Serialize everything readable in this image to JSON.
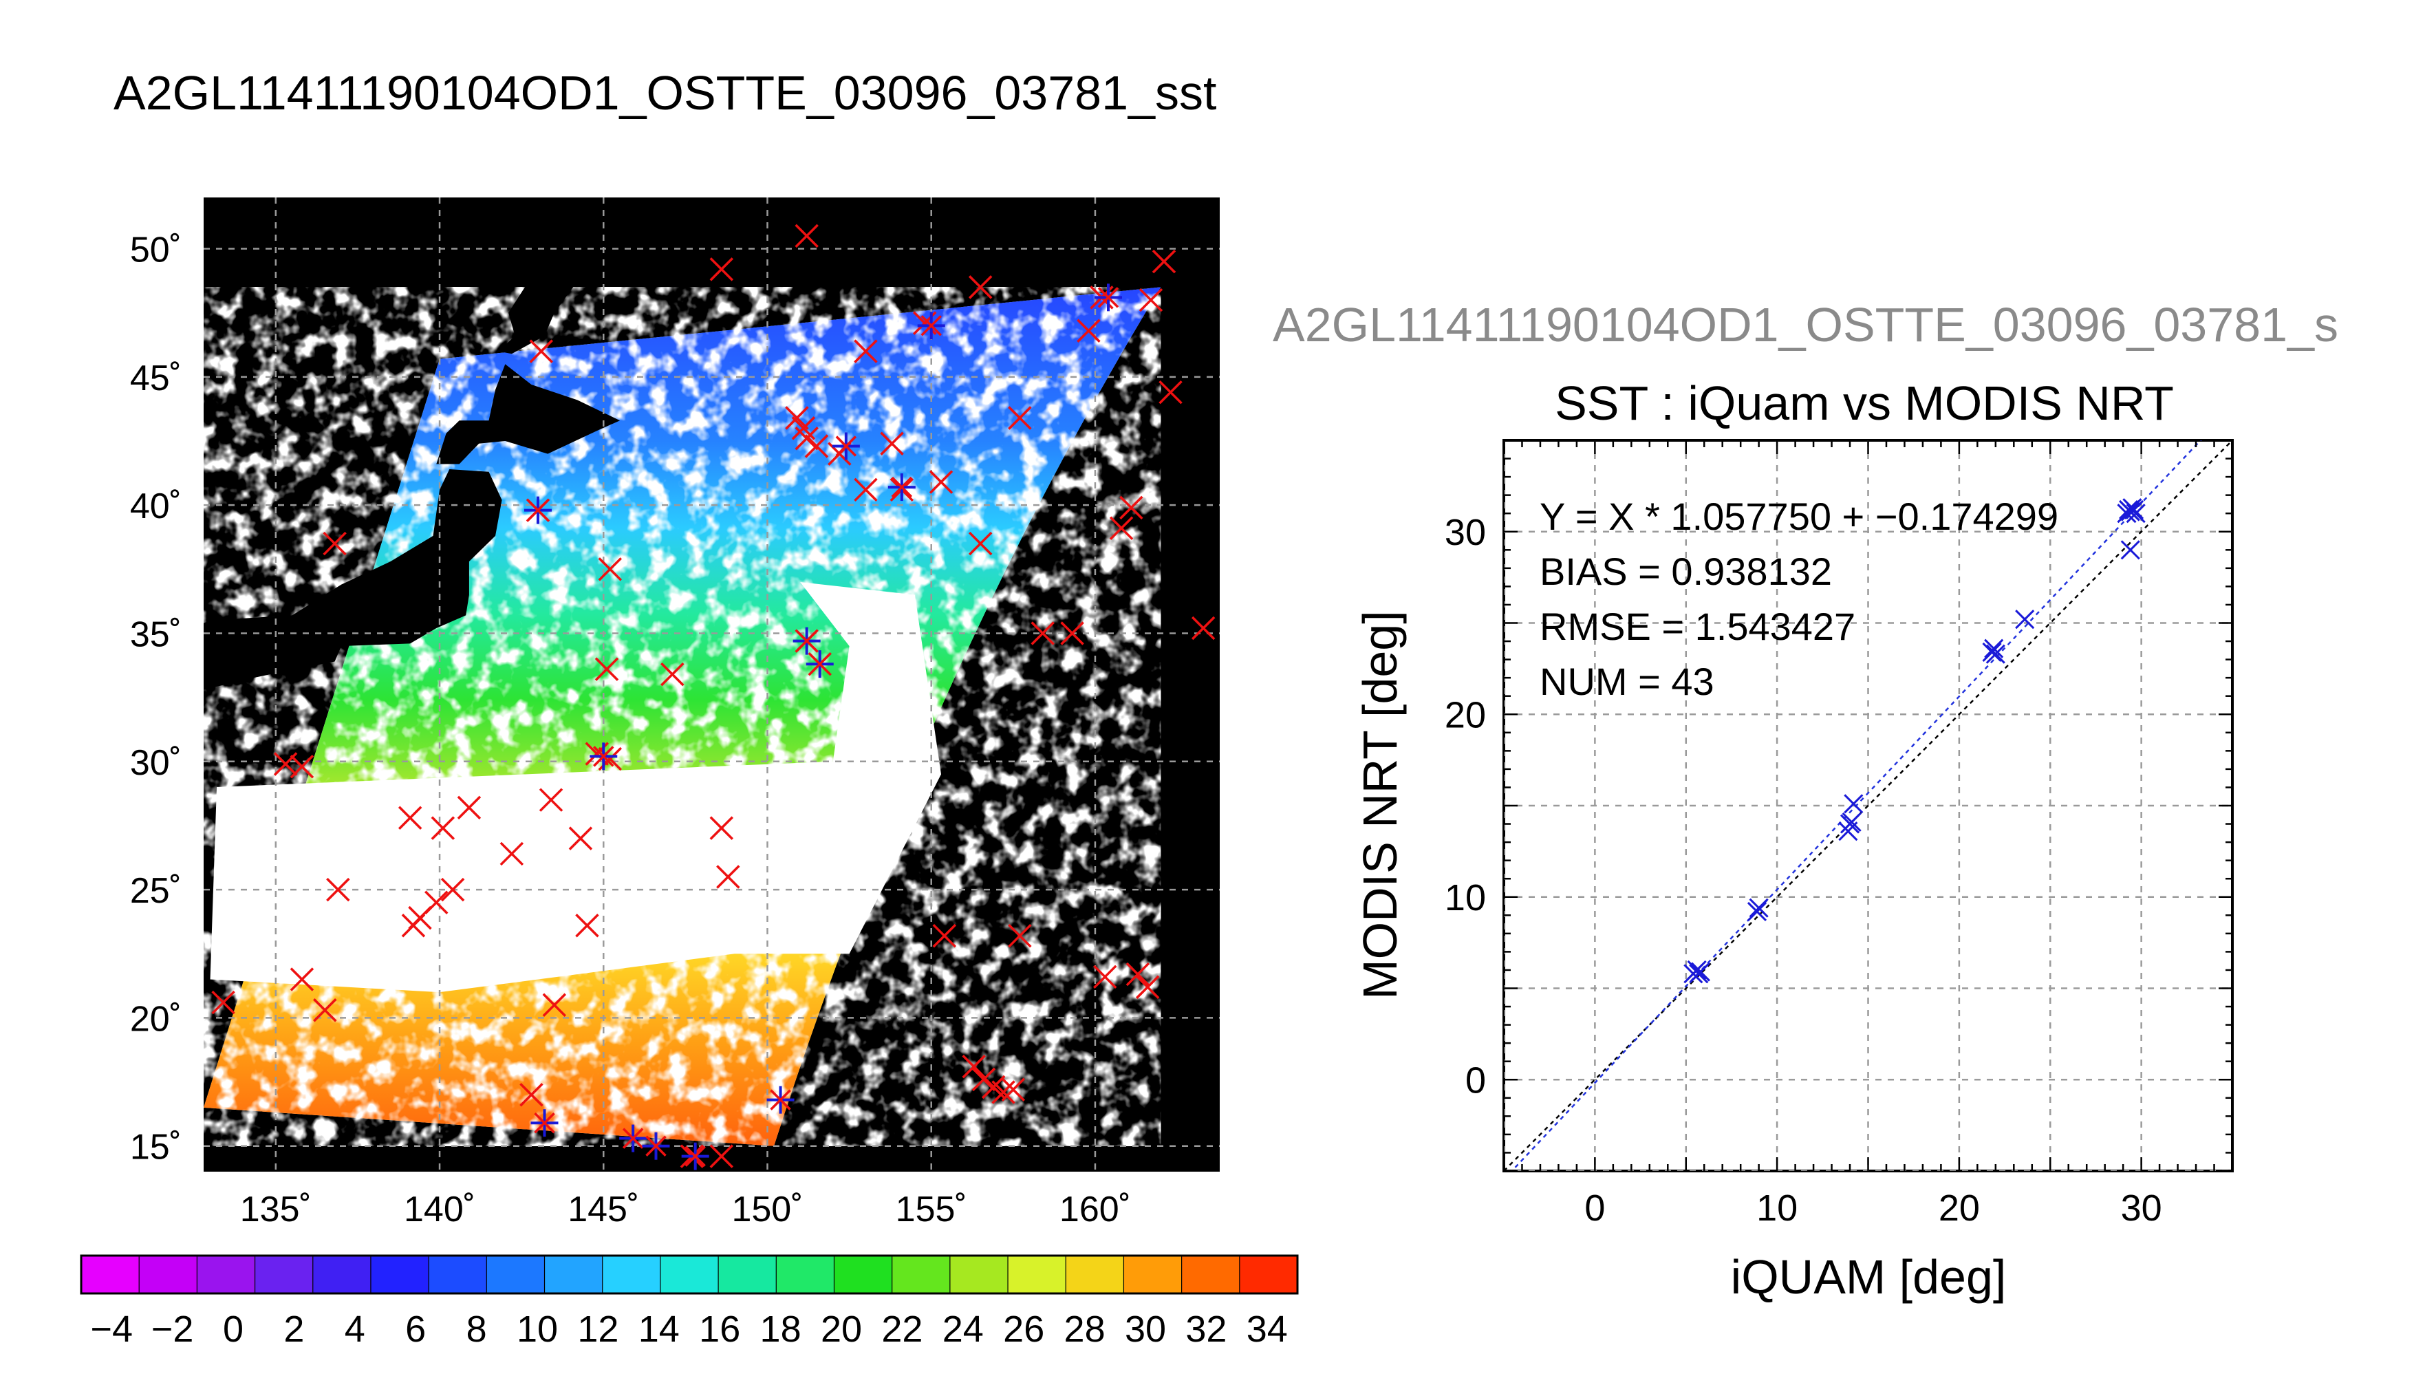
{
  "main_title": "A2GL11411190104OD1_OSTTE_03096_03781_sst",
  "subplot_title": "A2GL11411190104OD1_OSTTE_03096_03781_s",
  "colors": {
    "marker_red": "#ee1111",
    "marker_blue": "#1a1ad8",
    "regression_line": "#2233dd",
    "identity_line": "#000000",
    "map_background": "#000000",
    "swath_cloud": "#ffffff"
  },
  "chart_data": [
    {
      "type": "scatter",
      "title": "",
      "xlabel": "",
      "ylabel": "",
      "xlim": [
        132.8,
        163.8
      ],
      "ylim": [
        14,
        52
      ],
      "x_ticks": [
        135,
        140,
        145,
        150,
        155,
        160
      ],
      "y_ticks": [
        15,
        20,
        25,
        30,
        35,
        40,
        45,
        50
      ],
      "x_tick_labels": [
        "135˚",
        "140˚",
        "145˚",
        "150˚",
        "155˚",
        "160˚"
      ],
      "y_tick_labels": [
        "15˚",
        "20˚",
        "25˚",
        "30˚",
        "35˚",
        "40˚",
        "45˚",
        "50˚"
      ],
      "grid": true,
      "swath_corners": [
        [
          132.8,
          16.5
        ],
        [
          150.2,
          15.0
        ],
        [
          162.0,
          48.5
        ],
        [
          140.0,
          45.7
        ]
      ],
      "series": [
        {
          "points_red_x": [
            [
              143.1,
              46.0
            ],
            [
              148.6,
              49.2
            ],
            [
              151.2,
              50.5
            ],
            [
              156.5,
              48.5
            ],
            [
              160.2,
              48.1
            ],
            [
              161.7,
              48.0
            ],
            [
              162.1,
              49.5
            ],
            [
              159.8,
              46.8
            ],
            [
              162.3,
              44.4
            ],
            [
              154.8,
              47.1
            ],
            [
              153.0,
              46.0
            ],
            [
              150.9,
              43.4
            ],
            [
              151.1,
              43.0
            ],
            [
              151.5,
              42.3
            ],
            [
              151.2,
              42.6
            ],
            [
              152.2,
              42.0
            ],
            [
              153.8,
              42.4
            ],
            [
              157.7,
              43.4
            ],
            [
              155.3,
              40.9
            ],
            [
              153.0,
              40.6
            ],
            [
              154.1,
              40.6
            ],
            [
              161.1,
              39.9
            ],
            [
              160.8,
              39.1
            ],
            [
              143.0,
              39.8
            ],
            [
              136.8,
              38.5
            ],
            [
              145.2,
              37.5
            ],
            [
              156.5,
              38.5
            ],
            [
              158.4,
              35.0
            ],
            [
              159.3,
              35.0
            ],
            [
              163.3,
              35.2
            ],
            [
              151.2,
              34.7
            ],
            [
              151.6,
              33.8
            ],
            [
              145.1,
              33.6
            ],
            [
              147.1,
              33.4
            ],
            [
              135.3,
              29.9
            ],
            [
              135.8,
              29.8
            ],
            [
              144.8,
              30.3
            ],
            [
              145.2,
              30.1
            ],
            [
              139.1,
              27.8
            ],
            [
              140.1,
              27.4
            ],
            [
              140.9,
              28.2
            ],
            [
              143.4,
              28.5
            ],
            [
              144.3,
              27.0
            ],
            [
              148.6,
              27.4
            ],
            [
              142.2,
              26.4
            ],
            [
              148.8,
              25.5
            ],
            [
              136.9,
              25.0
            ],
            [
              140.4,
              25.0
            ],
            [
              139.9,
              24.5
            ],
            [
              139.4,
              23.9
            ],
            [
              139.2,
              23.6
            ],
            [
              144.5,
              23.6
            ],
            [
              155.4,
              23.2
            ],
            [
              157.7,
              23.2
            ],
            [
              133.4,
              20.6
            ],
            [
              135.8,
              21.5
            ],
            [
              136.5,
              20.3
            ],
            [
              143.5,
              20.5
            ],
            [
              160.3,
              21.6
            ],
            [
              161.3,
              21.7
            ],
            [
              161.6,
              21.2
            ],
            [
              156.3,
              18.1
            ],
            [
              156.6,
              17.6
            ],
            [
              156.9,
              17.3
            ],
            [
              157.2,
              17.1
            ],
            [
              157.5,
              17.2
            ],
            [
              142.8,
              17.0
            ],
            [
              147.7,
              14.6
            ],
            [
              148.6,
              14.6
            ]
          ],
          "points_blue_star": [
            [
              143.0,
              39.8
            ],
            [
              145.0,
              30.2
            ],
            [
              151.2,
              34.7
            ],
            [
              151.6,
              33.8
            ],
            [
              152.4,
              42.3
            ],
            [
              154.1,
              40.7
            ],
            [
              155.0,
              47.0
            ],
            [
              160.4,
              48.1
            ],
            [
              143.2,
              15.9
            ],
            [
              145.9,
              15.3
            ],
            [
              146.6,
              15.0
            ],
            [
              147.8,
              14.6
            ],
            [
              150.4,
              16.8
            ]
          ]
        }
      ]
    },
    {
      "type": "scatter",
      "title": "SST : iQuam vs MODIS NRT",
      "xlabel": "iQUAM [deg]",
      "ylabel": "MODIS NRT [deg]",
      "xlim": [
        -5,
        35
      ],
      "ylim": [
        -5,
        35
      ],
      "x_ticks": [
        0,
        10,
        20,
        30
      ],
      "y_ticks": [
        0,
        10,
        20,
        30
      ],
      "grid": true,
      "annotations": [
        "Y = X * 1.057750 + −0.174299",
        "BIAS = 0.938132",
        "RMSE = 1.543427",
        "NUM = 43"
      ],
      "fit": {
        "slope": 1.05775,
        "intercept": -0.174299
      },
      "series": [
        {
          "x": [
            5.4,
            5.6,
            5.7,
            5.8,
            8.9,
            9.0,
            13.9,
            14.0,
            14.1,
            14.2,
            21.8,
            21.9,
            22.0,
            23.6,
            29.2,
            29.3,
            29.4,
            29.5,
            29.6,
            29.7,
            29.4
          ],
          "y": [
            5.8,
            6.0,
            5.8,
            5.9,
            9.2,
            9.4,
            13.6,
            14.0,
            14.1,
            15.1,
            23.4,
            23.6,
            23.3,
            25.2,
            31.0,
            31.2,
            31.1,
            31.3,
            31.2,
            31.0,
            29.0
          ]
        }
      ]
    }
  ],
  "colorbar": {
    "tick_labels": [
      "−4",
      "−2",
      "0",
      "2",
      "4",
      "6",
      "8",
      "10",
      "12",
      "14",
      "16",
      "18",
      "20",
      "22",
      "24",
      "26",
      "28",
      "30",
      "32",
      "34"
    ],
    "range": [
      -5,
      35
    ],
    "colors": [
      "#e600ff",
      "#c400f7",
      "#9a14ee",
      "#6a22f0",
      "#4020f3",
      "#2222ff",
      "#1c4cff",
      "#1c78ff",
      "#22a4ff",
      "#26d0ff",
      "#1ae8d8",
      "#16e8a0",
      "#20e868",
      "#1fe020",
      "#64e61e",
      "#a6e820",
      "#d8f22a",
      "#f4d418",
      "#ff9c08",
      "#ff6a00",
      "#ff2a00"
    ]
  }
}
